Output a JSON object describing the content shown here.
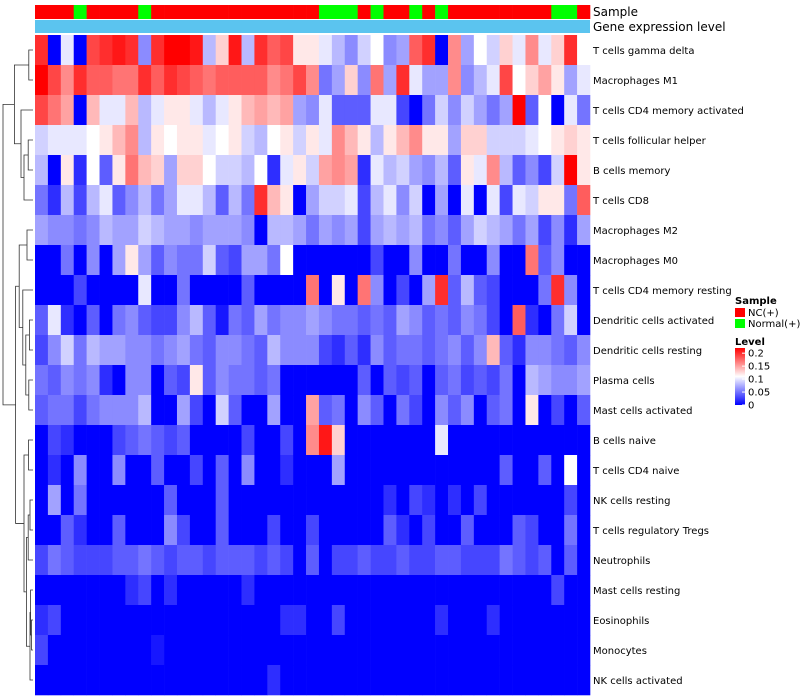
{
  "chart_data": {
    "type": "heatmap",
    "title": "",
    "annotation_track_labels": [
      "Sample",
      "Gene expression level"
    ],
    "row_labels": [
      "T cells gamma delta",
      "Macrophages M1",
      "T cells CD4 memory activated",
      "T cells follicular helper",
      "B cells memory",
      "T cells CD8",
      "Macrophages M2",
      "Macrophages M0",
      "T cells CD4 memory resting",
      "Dendritic cells activated",
      "Dendritic cells resting",
      "Plasma cells",
      "Mast cells activated",
      "B cells naive",
      "T cells CD4 naive",
      "NK cells resting",
      "T cells regulatory  Tregs",
      "Neutrophils",
      "Mast cells resting",
      "Eosinophils",
      "Monocytes",
      "NK cells activated"
    ],
    "sample_groups": [
      "NC",
      "NC",
      "NC",
      "Normal",
      "NC",
      "NC",
      "NC",
      "NC",
      "Normal",
      "NC",
      "NC",
      "NC",
      "NC",
      "NC",
      "NC",
      "NC",
      "NC",
      "NC",
      "NC",
      "NC",
      "NC",
      "NC",
      "Normal",
      "Normal",
      "Normal",
      "NC",
      "Normal",
      "NC",
      "NC",
      "Normal",
      "NC",
      "Normal",
      "NC",
      "NC",
      "NC",
      "NC",
      "NC",
      "NC",
      "NC",
      "NC",
      "Normal",
      "Normal",
      "NC"
    ],
    "values": [
      [
        0.2,
        0.0,
        0.1,
        0.0,
        0.19,
        0.2,
        0.21,
        0.2,
        0.06,
        0.2,
        0.22,
        0.22,
        0.21,
        0.08,
        0.13,
        0.21,
        0.08,
        0.2,
        0.18,
        0.19,
        0.12,
        0.12,
        0.1,
        0.08,
        0.06,
        0.09,
        0.11,
        0.06,
        0.07,
        0.18,
        0.2,
        0.0,
        0.16,
        0.07,
        0.11,
        0.09,
        0.13,
        0.1,
        0.16,
        0.1,
        0.13,
        0.2,
        0.11
      ],
      [
        0.22,
        0.19,
        0.16,
        0.2,
        0.18,
        0.18,
        0.17,
        0.17,
        0.2,
        0.18,
        0.2,
        0.19,
        0.18,
        0.17,
        0.18,
        0.18,
        0.18,
        0.18,
        0.16,
        0.17,
        0.19,
        0.16,
        0.05,
        0.07,
        0.13,
        0.06,
        0.17,
        0.07,
        0.2,
        0.1,
        0.07,
        0.07,
        0.16,
        0.06,
        0.08,
        0.1,
        0.19,
        0.11,
        0.13,
        0.15,
        0.12,
        0.07,
        0.1
      ],
      [
        0.19,
        0.17,
        0.15,
        0.0,
        0.14,
        0.1,
        0.1,
        0.14,
        0.08,
        0.1,
        0.12,
        0.12,
        0.1,
        0.08,
        0.1,
        0.12,
        0.14,
        0.15,
        0.14,
        0.15,
        0.07,
        0.06,
        0.1,
        0.04,
        0.04,
        0.04,
        0.1,
        0.1,
        0.03,
        0.0,
        0.05,
        0.09,
        0.06,
        0.09,
        0.07,
        0.05,
        0.07,
        0.22,
        0.04,
        0.11,
        0.0,
        0.1,
        0.05
      ],
      [
        0.09,
        0.1,
        0.1,
        0.1,
        0.11,
        0.12,
        0.14,
        0.16,
        0.08,
        0.12,
        0.11,
        0.12,
        0.12,
        0.1,
        0.11,
        0.12,
        0.09,
        0.08,
        0.11,
        0.12,
        0.09,
        0.12,
        0.1,
        0.16,
        0.14,
        0.12,
        0.08,
        0.12,
        0.14,
        0.16,
        0.12,
        0.12,
        0.07,
        0.13,
        0.13,
        0.09,
        0.09,
        0.09,
        0.1,
        0.11,
        0.12,
        0.13,
        0.12
      ],
      [
        0.08,
        0.0,
        0.12,
        0.02,
        0.11,
        0.04,
        0.12,
        0.17,
        0.14,
        0.13,
        0.07,
        0.13,
        0.13,
        0.11,
        0.09,
        0.09,
        0.08,
        0.11,
        0.02,
        0.1,
        0.12,
        0.09,
        0.15,
        0.16,
        0.15,
        0.02,
        0.1,
        0.08,
        0.09,
        0.07,
        0.06,
        0.08,
        0.04,
        0.12,
        0.1,
        0.16,
        0.08,
        0.04,
        0.06,
        0.03,
        0.09,
        0.22,
        0.12
      ],
      [
        0.05,
        0.02,
        0.08,
        0.03,
        0.08,
        0.1,
        0.04,
        0.06,
        0.08,
        0.05,
        0.07,
        0.1,
        0.1,
        0.08,
        0.04,
        0.08,
        0.05,
        0.2,
        0.14,
        0.12,
        0.0,
        0.07,
        0.09,
        0.09,
        0.1,
        0.03,
        0.08,
        0.1,
        0.06,
        0.09,
        0.0,
        0.07,
        0.0,
        0.1,
        0.0,
        0.1,
        0.03,
        0.1,
        0.09,
        0.12,
        0.12,
        0.05,
        0.18
      ],
      [
        0.07,
        0.06,
        0.06,
        0.05,
        0.06,
        0.08,
        0.07,
        0.07,
        0.09,
        0.08,
        0.07,
        0.07,
        0.06,
        0.07,
        0.07,
        0.07,
        0.06,
        0.0,
        0.08,
        0.08,
        0.07,
        0.05,
        0.07,
        0.06,
        0.07,
        0.03,
        0.07,
        0.08,
        0.07,
        0.08,
        0.05,
        0.06,
        0.04,
        0.07,
        0.09,
        0.08,
        0.07,
        0.05,
        0.07,
        0.03,
        0.06,
        0.02,
        0.07
      ],
      [
        0.0,
        0.0,
        0.05,
        0.0,
        0.06,
        0.0,
        0.07,
        0.12,
        0.07,
        0.04,
        0.06,
        0.05,
        0.05,
        0.09,
        0.04,
        0.03,
        0.07,
        0.07,
        0.05,
        0.11,
        0.0,
        0.0,
        0.0,
        0.0,
        0.0,
        0.0,
        0.03,
        0.0,
        0.0,
        0.06,
        0.0,
        0.0,
        0.05,
        0.0,
        0.0,
        0.06,
        0.0,
        0.0,
        0.17,
        0.04,
        0.06,
        0.0,
        0.0
      ],
      [
        0.0,
        0.0,
        0.0,
        0.03,
        0.0,
        0.0,
        0.0,
        0.0,
        0.1,
        0.0,
        0.0,
        0.05,
        0.0,
        0.0,
        0.0,
        0.0,
        0.04,
        0.0,
        0.0,
        0.0,
        0.0,
        0.17,
        0.0,
        0.12,
        0.0,
        0.17,
        0.06,
        0.0,
        0.03,
        0.0,
        0.07,
        0.2,
        0.04,
        0.08,
        0.04,
        0.03,
        0.0,
        0.0,
        0.0,
        0.05,
        0.2,
        0.06,
        0.0
      ],
      [
        0.04,
        0.1,
        0.02,
        0.0,
        0.04,
        0.0,
        0.05,
        0.06,
        0.04,
        0.03,
        0.03,
        0.06,
        0.08,
        0.04,
        0.01,
        0.05,
        0.04,
        0.07,
        0.05,
        0.06,
        0.06,
        0.07,
        0.06,
        0.05,
        0.05,
        0.04,
        0.05,
        0.04,
        0.07,
        0.06,
        0.04,
        0.05,
        0.04,
        0.06,
        0.05,
        0.03,
        0.0,
        0.18,
        0.02,
        0.0,
        0.05,
        0.09,
        0.0
      ],
      [
        0.03,
        0.06,
        0.09,
        0.05,
        0.08,
        0.07,
        0.07,
        0.06,
        0.06,
        0.05,
        0.06,
        0.07,
        0.05,
        0.04,
        0.06,
        0.06,
        0.05,
        0.04,
        0.08,
        0.06,
        0.06,
        0.06,
        0.03,
        0.02,
        0.04,
        0.02,
        0.06,
        0.04,
        0.05,
        0.05,
        0.04,
        0.05,
        0.06,
        0.04,
        0.06,
        0.14,
        0.04,
        0.02,
        0.06,
        0.06,
        0.05,
        0.04,
        0.06
      ],
      [
        0.05,
        0.04,
        0.06,
        0.05,
        0.06,
        0.02,
        0.0,
        0.06,
        0.06,
        0.0,
        0.04,
        0.03,
        0.12,
        0.04,
        0.06,
        0.05,
        0.05,
        0.04,
        0.05,
        0.0,
        0.0,
        0.0,
        0.0,
        0.0,
        0.0,
        0.04,
        0.0,
        0.04,
        0.03,
        0.04,
        0.0,
        0.04,
        0.05,
        0.03,
        0.04,
        0.03,
        0.05,
        0.0,
        0.08,
        0.07,
        0.06,
        0.06,
        0.07
      ],
      [
        0.04,
        0.05,
        0.05,
        0.03,
        0.05,
        0.06,
        0.06,
        0.06,
        0.08,
        0.0,
        0.0,
        0.07,
        0.03,
        0.0,
        0.09,
        0.04,
        0.0,
        0.0,
        0.07,
        0.0,
        0.0,
        0.15,
        0.04,
        0.05,
        0.0,
        0.06,
        0.04,
        0.0,
        0.05,
        0.03,
        0.0,
        0.06,
        0.04,
        0.06,
        0.0,
        0.04,
        0.05,
        0.0,
        0.12,
        0.0,
        0.03,
        0.0,
        0.04
      ],
      [
        0.0,
        0.03,
        0.02,
        0.0,
        0.0,
        0.0,
        0.03,
        0.04,
        0.05,
        0.04,
        0.03,
        0.04,
        0.0,
        0.0,
        0.0,
        0.0,
        0.03,
        0.0,
        0.0,
        0.03,
        0.0,
        0.16,
        0.21,
        0.13,
        0.0,
        0.0,
        0.0,
        0.0,
        0.0,
        0.0,
        0.0,
        0.1,
        0.0,
        0.0,
        0.0,
        0.0,
        0.0,
        0.0,
        0.0,
        0.0,
        0.0,
        0.0,
        0.0
      ],
      [
        0.0,
        0.02,
        0.0,
        0.06,
        0.0,
        0.0,
        0.06,
        0.0,
        0.0,
        0.04,
        0.0,
        0.0,
        0.03,
        0.0,
        0.04,
        0.0,
        0.06,
        0.0,
        0.0,
        0.02,
        0.0,
        0.0,
        0.0,
        0.07,
        0.0,
        0.0,
        0.0,
        0.0,
        0.0,
        0.0,
        0.0,
        0.0,
        0.0,
        0.0,
        0.0,
        0.0,
        0.04,
        0.0,
        0.0,
        0.04,
        0.0,
        0.11,
        0.0
      ],
      [
        0.0,
        0.07,
        0.0,
        0.05,
        0.0,
        0.0,
        0.0,
        0.0,
        0.0,
        0.0,
        0.04,
        0.0,
        0.0,
        0.0,
        0.04,
        0.0,
        0.0,
        0.0,
        0.0,
        0.0,
        0.0,
        0.0,
        0.0,
        0.0,
        0.0,
        0.0,
        0.0,
        0.02,
        0.0,
        0.03,
        0.02,
        0.0,
        0.02,
        0.0,
        0.03,
        0.0,
        0.0,
        0.0,
        0.0,
        0.0,
        0.0,
        0.03,
        0.0
      ],
      [
        0.0,
        0.0,
        0.04,
        0.02,
        0.0,
        0.0,
        0.04,
        0.0,
        0.0,
        0.0,
        0.06,
        0.03,
        0.0,
        0.0,
        0.04,
        0.0,
        0.0,
        0.0,
        0.03,
        0.0,
        0.0,
        0.03,
        0.0,
        0.0,
        0.0,
        0.0,
        0.0,
        0.04,
        0.02,
        0.0,
        0.03,
        0.0,
        0.0,
        0.04,
        0.0,
        0.0,
        0.0,
        0.04,
        0.03,
        0.0,
        0.0,
        0.05,
        0.0
      ],
      [
        0.03,
        0.05,
        0.04,
        0.03,
        0.03,
        0.03,
        0.04,
        0.04,
        0.05,
        0.04,
        0.03,
        0.04,
        0.04,
        0.03,
        0.04,
        0.04,
        0.04,
        0.03,
        0.04,
        0.03,
        0.0,
        0.04,
        0.0,
        0.03,
        0.03,
        0.04,
        0.03,
        0.03,
        0.04,
        0.03,
        0.03,
        0.04,
        0.04,
        0.03,
        0.03,
        0.03,
        0.05,
        0.04,
        0.03,
        0.04,
        0.0,
        0.04,
        0.0
      ],
      [
        0.0,
        0.0,
        0.0,
        0.0,
        0.0,
        0.0,
        0.0,
        0.02,
        0.03,
        0.0,
        0.02,
        0.0,
        0.0,
        0.0,
        0.0,
        0.0,
        0.02,
        0.0,
        0.0,
        0.0,
        0.0,
        0.0,
        0.0,
        0.0,
        0.0,
        0.0,
        0.0,
        0.0,
        0.0,
        0.0,
        0.0,
        0.0,
        0.0,
        0.0,
        0.0,
        0.0,
        0.0,
        0.0,
        0.0,
        0.0,
        0.03,
        0.0,
        0.0
      ],
      [
        0.02,
        0.03,
        0.0,
        0.0,
        0.0,
        0.0,
        0.0,
        0.0,
        0.0,
        0.0,
        0.0,
        0.0,
        0.0,
        0.0,
        0.0,
        0.0,
        0.0,
        0.0,
        0.0,
        0.02,
        0.02,
        0.0,
        0.0,
        0.03,
        0.0,
        0.0,
        0.0,
        0.0,
        0.0,
        0.0,
        0.0,
        0.02,
        0.0,
        0.0,
        0.0,
        0.02,
        0.0,
        0.0,
        0.0,
        0.0,
        0.0,
        0.0,
        0.0
      ],
      [
        0.03,
        0.0,
        0.0,
        0.0,
        0.0,
        0.0,
        0.0,
        0.0,
        0.0,
        0.01,
        0.0,
        0.0,
        0.0,
        0.0,
        0.0,
        0.0,
        0.0,
        0.0,
        0.0,
        0.0,
        0.0,
        0.0,
        0.0,
        0.0,
        0.0,
        0.0,
        0.0,
        0.0,
        0.0,
        0.0,
        0.0,
        0.0,
        0.0,
        0.0,
        0.0,
        0.0,
        0.0,
        0.0,
        0.0,
        0.0,
        0.0,
        0.0,
        0.0
      ],
      [
        0.0,
        0.0,
        0.0,
        0.0,
        0.0,
        0.0,
        0.0,
        0.0,
        0.0,
        0.0,
        0.0,
        0.0,
        0.0,
        0.0,
        0.0,
        0.0,
        0.0,
        0.0,
        0.02,
        0.0,
        0.0,
        0.0,
        0.0,
        0.0,
        0.0,
        0.0,
        0.0,
        0.0,
        0.0,
        0.0,
        0.0,
        0.0,
        0.0,
        0.0,
        0.0,
        0.0,
        0.0,
        0.0,
        0.0,
        0.0,
        0.0,
        0.0,
        0.0
      ]
    ],
    "legend": {
      "sample": {
        "title": "Sample",
        "entries": [
          {
            "key": "NC",
            "label": "NC(+)",
            "color": "#ff0000"
          },
          {
            "key": "Normal",
            "label": "Normal(+)",
            "color": "#00ff00"
          }
        ]
      },
      "level": {
        "title": "Level",
        "ticks": [
          0.2,
          0.15,
          0.1,
          0.05,
          0
        ],
        "tick_labels": [
          "0.2",
          "0.15",
          "0.1",
          "0.05",
          "0"
        ],
        "range": [
          0,
          0.22
        ]
      }
    },
    "colors": {
      "low": "#0000ff",
      "mid": "#ffffff",
      "high": "#ff0000",
      "gene_expression_track": "#5bc4ef"
    }
  }
}
